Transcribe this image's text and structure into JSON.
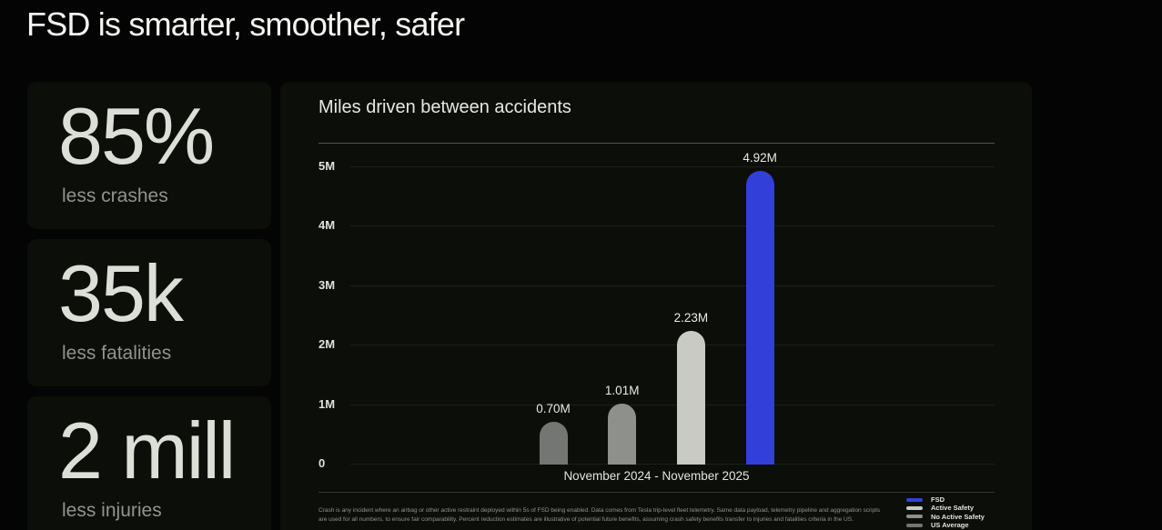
{
  "page": {
    "title": "FSD is smarter, smoother, safer"
  },
  "stats": [
    {
      "value": "85%",
      "label": "less crashes"
    },
    {
      "value": "35k",
      "label": "less fatalities"
    },
    {
      "value": "2 mill",
      "label": "less injuries"
    }
  ],
  "chart": {
    "title": "Miles driven between accidents",
    "xlabel": "November 2024 - November 2025",
    "footnote_line1": "Crash is any incident where an airbag or other active restraint deployed within 5s of FSD being enabled. Data comes from Tesla trip-level fleet telemetry. Same data payload, telemetry pipeline and aggregation scripts",
    "footnote_line2": "are used for all numbers, to ensure fair comparability. Percent reduction estimates are illustrative of potential future benefits, assuming crash safety benefits transfer to injuries and fatalities criteria in the US."
  },
  "chart_data": {
    "type": "bar",
    "title": "Miles driven between accidents",
    "xlabel": "November 2024 - November 2025",
    "ylabel": "",
    "categories": [
      "US Average",
      "No Active Safety",
      "Active Safety",
      "FSD"
    ],
    "values": [
      0.7,
      1.01,
      2.23,
      4.92
    ],
    "value_labels": [
      "0.70M",
      "1.01M",
      "2.23M",
      "4.92M"
    ],
    "bar_colors": [
      "#737672",
      "#8e908b",
      "#c8cac3",
      "#3240d9"
    ],
    "ylim": [
      0,
      5
    ],
    "y_tick_values": [
      0,
      1,
      2,
      3,
      4,
      5
    ],
    "y_tick_labels": [
      "0",
      "1M",
      "2M",
      "3M",
      "4M",
      "5M"
    ],
    "grid": true,
    "legend_position": "bottom-right",
    "legend": [
      {
        "label": "FSD",
        "color": "#3240d9"
      },
      {
        "label": "Active Safety",
        "color": "#c8cac3"
      },
      {
        "label": "No Active Safety",
        "color": "#8e908b"
      },
      {
        "label": "US Average",
        "color": "#737672"
      }
    ],
    "colors": {
      "background": "#030403",
      "panel": "#0c0e0a",
      "accent_blue": "#3240d9"
    }
  }
}
